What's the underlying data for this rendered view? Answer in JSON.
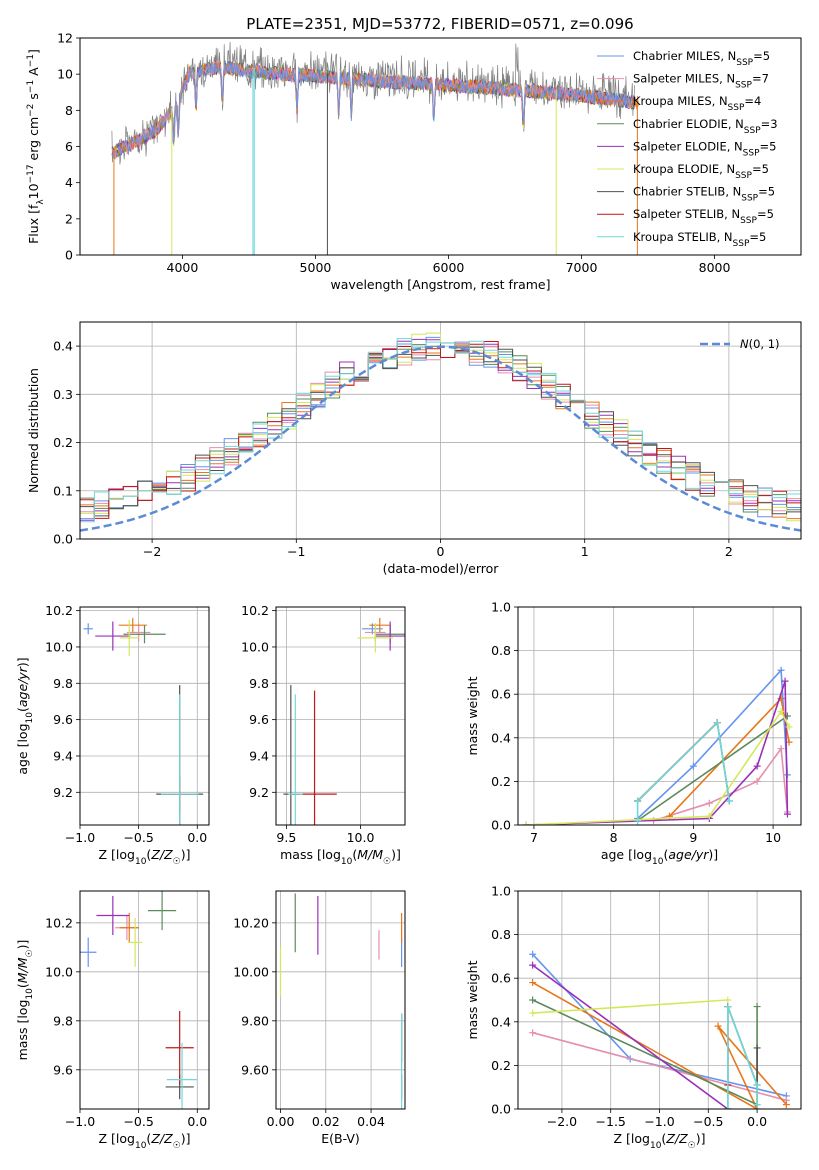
{
  "title": "PLATE=2351, MJD=53772, FIBERID=0571, z=0.096",
  "models": [
    {
      "label": "Chabrier MILES, N$_{SSP}$=5",
      "display": "Chabrier MILES, N",
      "sub": "SSP",
      "n": "=5",
      "color": "#6495ed"
    },
    {
      "label": "Salpeter MILES, N$_{SSP}$=7",
      "display": "Salpeter MILES, N",
      "sub": "SSP",
      "n": "=7",
      "color": "#e68fac"
    },
    {
      "label": "Kroupa MILES, N$_{SSP}$=4",
      "display": "Kroupa MILES, N",
      "sub": "SSP",
      "n": "=4",
      "color": "#e8761a"
    },
    {
      "label": "Chabrier ELODIE, N$_{SSP}$=3",
      "display": "Chabrier ELODIE, N",
      "sub": "SSP",
      "n": "=3",
      "color": "#5b8a5b"
    },
    {
      "label": "Salpeter ELODIE, N$_{SSP}$=5",
      "display": "Salpeter ELODIE, N",
      "sub": "SSP",
      "n": "=5",
      "color": "#9b30b8"
    },
    {
      "label": "Kroupa ELODIE, N$_{SSP}$=5",
      "display": "Kroupa ELODIE, N",
      "sub": "SSP",
      "n": "=5",
      "color": "#d4e85a"
    },
    {
      "label": "Chabrier STELIB, N$_{SSP}$=5",
      "display": "Chabrier STELIB, N",
      "sub": "SSP",
      "n": "=5",
      "color": "#505050"
    },
    {
      "label": "Salpeter STELIB, N$_{SSP}$=5",
      "display": "Salpeter STELIB, N",
      "sub": "SSP",
      "n": "=5",
      "color": "#c01818"
    },
    {
      "label": "Kroupa STELIB, N$_{SSP}$=5",
      "display": "Kroupa STELIB, N",
      "sub": "SSP",
      "n": "=5",
      "color": "#70d8d8"
    }
  ],
  "chart_data": [
    {
      "id": "spectrum",
      "type": "line",
      "xlabel": "wavelength [Angstrom, rest frame]",
      "ylabel": "Flux [f$_\\lambda$ 10$^{-17}$ erg cm$^{-2}$ s$^{-1}$ A$^{-1}$]",
      "xlim": [
        3230,
        8650
      ],
      "ylim": [
        0,
        12
      ],
      "xticks": [
        4000,
        5000,
        6000,
        7000,
        8000
      ],
      "yticks": [
        0,
        2,
        4,
        6,
        8,
        10,
        12
      ],
      "data_color": "#808080",
      "continuum": {
        "x": [
          3470,
          3600,
          3800,
          3950,
          4050,
          4300,
          4600,
          5000,
          5500,
          6000,
          6500,
          7000,
          7400
        ],
        "y": [
          5.8,
          6.2,
          7.0,
          8.4,
          10.3,
          10.6,
          10.3,
          10.1,
          9.8,
          9.6,
          9.3,
          9.0,
          8.6
        ]
      },
      "note": "observed spectrum with nine model fits"
    },
    {
      "id": "residuals",
      "type": "bar",
      "xlabel": "(data-model)/error",
      "ylabel": "Normed distribution",
      "xlim": [
        -2.5,
        2.5
      ],
      "ylim": [
        0,
        0.45
      ],
      "xticks": [
        -2,
        -1,
        0,
        1,
        2
      ],
      "yticks": [
        0.0,
        0.1,
        0.2,
        0.3,
        0.4
      ],
      "bin_width": 0.1,
      "reference": {
        "label": "N(0,1)",
        "mean": 0,
        "sigma": 1,
        "color": "#5b8bd6"
      }
    },
    {
      "id": "age_vs_Z",
      "type": "scatter",
      "xlabel": "Z [log10(Z/Z☉)]",
      "ylabel": "age [log10(age/yr)]",
      "xlim": [
        -1.0,
        0.1
      ],
      "ylim": [
        9.02,
        10.22
      ],
      "xticks": [
        -1.0,
        -0.5,
        0.0
      ],
      "yticks": [
        9.2,
        9.4,
        9.6,
        9.8,
        10.0,
        10.2
      ],
      "points": [
        {
          "model": 0,
          "x": -0.93,
          "y": 10.1,
          "xerr": 0.04,
          "yerr": 0.03
        },
        {
          "model": 1,
          "x": -0.5,
          "y": 10.08,
          "xerr": 0.1,
          "yerr": 0.05
        },
        {
          "model": 2,
          "x": -0.55,
          "y": 10.12,
          "xerr": 0.12,
          "yerr": 0.04
        },
        {
          "model": 3,
          "x": -0.45,
          "y": 10.07,
          "xerr": 0.18,
          "yerr": 0.05
        },
        {
          "model": 4,
          "x": -0.72,
          "y": 10.06,
          "xerr": 0.15,
          "yerr": 0.08
        },
        {
          "model": 5,
          "x": -0.58,
          "y": 10.05,
          "xerr": 0.08,
          "yerr": 0.1
        },
        {
          "model": 6,
          "x": -0.15,
          "y": 9.19,
          "xerr": 0.2,
          "yerr": 0.6
        },
        {
          "model": 7,
          "x": -0.15,
          "y": 9.19,
          "xerr": 0.15,
          "yerr": 0.1
        },
        {
          "model": 8,
          "x": -0.15,
          "y": 9.19,
          "xerr": 0.16,
          "yerr": 0.55
        }
      ]
    },
    {
      "id": "age_vs_mass",
      "type": "scatter",
      "xlabel": "mass [log10(M/M☉)]",
      "ylabel": "",
      "xlim": [
        9.43,
        10.3
      ],
      "ylim": [
        9.02,
        10.22
      ],
      "xticks": [
        9.5,
        10.0
      ],
      "yticks": [
        9.2,
        9.4,
        9.6,
        9.8,
        10.0,
        10.2
      ],
      "points": [
        {
          "model": 0,
          "x": 10.08,
          "y": 10.1,
          "xerr": 0.07,
          "yerr": 0.03
        },
        {
          "model": 1,
          "x": 10.1,
          "y": 10.08,
          "xerr": 0.07,
          "yerr": 0.05
        },
        {
          "model": 2,
          "x": 10.13,
          "y": 10.12,
          "xerr": 0.07,
          "yerr": 0.04
        },
        {
          "model": 3,
          "x": 10.2,
          "y": 10.07,
          "xerr": 0.1,
          "yerr": 0.05
        },
        {
          "model": 4,
          "x": 10.2,
          "y": 10.06,
          "xerr": 0.1,
          "yerr": 0.08
        },
        {
          "model": 5,
          "x": 10.1,
          "y": 10.05,
          "xerr": 0.12,
          "yerr": 0.08
        },
        {
          "model": 6,
          "x": 9.53,
          "y": 9.19,
          "xerr": 0.05,
          "yerr": 0.6
        },
        {
          "model": 7,
          "x": 9.69,
          "y": 9.19,
          "xerr": 0.15,
          "yerr": 0.57
        },
        {
          "model": 8,
          "x": 9.56,
          "y": 9.19,
          "xerr": 0.05,
          "yerr": 0.55
        }
      ]
    },
    {
      "id": "mass_weight_vs_age",
      "type": "line",
      "xlabel": "age [log10(age/yr)]",
      "ylabel": "mass weight",
      "xlim": [
        6.8,
        10.35
      ],
      "ylim": [
        0,
        1.0
      ],
      "xticks": [
        7,
        8,
        9,
        10
      ],
      "yticks": [
        0.0,
        0.2,
        0.4,
        0.6,
        0.8,
        1.0
      ],
      "series": [
        {
          "model": 0,
          "x": [
            8.3,
            9.0,
            10.1,
            10.18
          ],
          "y": [
            0.03,
            0.27,
            0.71,
            0.23
          ]
        },
        {
          "model": 1,
          "x": [
            8.5,
            9.2,
            9.8,
            10.1,
            10.18
          ],
          "y": [
            0.02,
            0.1,
            0.2,
            0.35,
            0.06
          ]
        },
        {
          "model": 2,
          "x": [
            8.7,
            10.1,
            10.2
          ],
          "y": [
            0.04,
            0.58,
            0.38
          ]
        },
        {
          "model": 3,
          "x": [
            8.3,
            10.18
          ],
          "y": [
            0.02,
            0.5
          ]
        },
        {
          "model": 4,
          "x": [
            6.9,
            9.2,
            9.8,
            10.15,
            10.18
          ],
          "y": [
            0.0,
            0.03,
            0.27,
            0.66,
            0.05
          ]
        },
        {
          "model": 5,
          "x": [
            6.9,
            9.2,
            10.1,
            10.2
          ],
          "y": [
            0.0,
            0.04,
            0.52,
            0.45
          ]
        },
        {
          "model": 6,
          "x": [
            8.3,
            9.3,
            9.45
          ],
          "y": [
            0.11,
            0.47,
            0.11
          ]
        },
        {
          "model": 7,
          "x": [
            8.3,
            9.3
          ],
          "y": [
            0.11,
            0.47
          ]
        },
        {
          "model": 8,
          "x": [
            8.3,
            8.3,
            9.3,
            9.45
          ],
          "y": [
            0.02,
            0.11,
            0.47,
            0.11
          ]
        }
      ]
    },
    {
      "id": "mass_vs_Z",
      "type": "scatter",
      "xlabel": "Z [log10(Z/Z☉)]",
      "ylabel": "mass [log10(M/M☉)]",
      "xlim": [
        -1.0,
        0.1
      ],
      "ylim": [
        9.44,
        10.33
      ],
      "xticks": [
        -1.0,
        -0.5,
        0.0
      ],
      "yticks": [
        9.6,
        9.8,
        10.0,
        10.2
      ],
      "points": [
        {
          "model": 0,
          "x": -0.93,
          "y": 10.08,
          "xerr": 0.07,
          "yerr": 0.06
        },
        {
          "model": 1,
          "x": -0.6,
          "y": 10.18,
          "xerr": 0.1,
          "yerr": 0.05
        },
        {
          "model": 2,
          "x": -0.58,
          "y": 10.18,
          "xerr": 0.08,
          "yerr": 0.06
        },
        {
          "model": 3,
          "x": -0.3,
          "y": 10.25,
          "xerr": 0.12,
          "yerr": 0.08
        },
        {
          "model": 4,
          "x": -0.72,
          "y": 10.23,
          "xerr": 0.14,
          "yerr": 0.08
        },
        {
          "model": 5,
          "x": -0.53,
          "y": 10.12,
          "xerr": 0.06,
          "yerr": 0.1
        },
        {
          "model": 6,
          "x": -0.15,
          "y": 9.53,
          "xerr": 0.12,
          "yerr": 0.05
        },
        {
          "model": 7,
          "x": -0.15,
          "y": 9.69,
          "xerr": 0.12,
          "yerr": 0.15
        },
        {
          "model": 8,
          "x": -0.13,
          "y": 9.56,
          "xerr": 0.13,
          "yerr": 0.15
        }
      ]
    },
    {
      "id": "mass_vs_EBV",
      "type": "scatter",
      "xlabel": "E(B-V)",
      "ylabel": "",
      "xlim": [
        -0.002,
        0.055
      ],
      "ylim": [
        9.44,
        10.33
      ],
      "xticks": [
        0.0,
        0.02,
        0.04
      ],
      "yticks": [
        9.6,
        9.8,
        10.0,
        10.2
      ],
      "points": [
        {
          "model": 0,
          "x": 0.0535,
          "y": 10.08,
          "xerr": 0,
          "yerr": 0.06
        },
        {
          "model": 1,
          "x": 0.0435,
          "y": 10.11,
          "xerr": 0,
          "yerr": 0.06
        },
        {
          "model": 2,
          "x": 0.0535,
          "y": 10.18,
          "xerr": 0,
          "yerr": 0.06
        },
        {
          "model": 3,
          "x": 0.0065,
          "y": 10.2,
          "xerr": 0,
          "yerr": 0.12
        },
        {
          "model": 4,
          "x": 0.0165,
          "y": 10.19,
          "xerr": 0,
          "yerr": 0.12
        },
        {
          "model": 5,
          "x": 0.0,
          "y": 10.0,
          "xerr": 0,
          "yerr": 0.1
        },
        {
          "model": 6,
          "x": 0.0535,
          "y": 9.53,
          "xerr": 0,
          "yerr": 0.05
        },
        {
          "model": 7,
          "x": 0.0535,
          "y": 9.73,
          "xerr": 0,
          "yerr": 0.1
        },
        {
          "model": 8,
          "x": 0.0535,
          "y": 9.63,
          "xerr": 0,
          "yerr": 0.2
        }
      ]
    },
    {
      "id": "mass_weight_vs_Z",
      "type": "line",
      "xlabel": "Z [log10(Z/Z☉)]",
      "ylabel": "mass weight",
      "xlim": [
        -2.45,
        0.45
      ],
      "ylim": [
        0,
        1.0
      ],
      "xticks": [
        -2.0,
        -1.5,
        -1.0,
        -0.5,
        0.0
      ],
      "yticks": [
        0.0,
        0.2,
        0.4,
        0.6,
        0.8,
        1.0
      ],
      "series": [
        {
          "model": 0,
          "x": [
            -2.3,
            -1.3,
            0.3
          ],
          "y": [
            0.71,
            0.23,
            0.06
          ]
        },
        {
          "model": 1,
          "x": [
            -2.3,
            0.3
          ],
          "y": [
            0.35,
            0.04
          ]
        },
        {
          "model": 2,
          "x": [
            -2.3,
            0.0,
            -0.4,
            0.3
          ],
          "y": [
            0.58,
            0.0,
            0.38,
            0.02
          ]
        },
        {
          "model": 3,
          "x": [
            -2.3,
            0.0,
            0.0
          ],
          "y": [
            0.5,
            0.02,
            0.47
          ]
        },
        {
          "model": 4,
          "x": [
            -2.3,
            -0.3
          ],
          "y": [
            0.66,
            0.0
          ]
        },
        {
          "model": 5,
          "x": [
            -2.3,
            -0.3
          ],
          "y": [
            0.44,
            0.5
          ]
        },
        {
          "model": 6,
          "x": [
            -0.3,
            -0.3,
            0.0,
            0.0
          ],
          "y": [
            0.0,
            0.47,
            0.11,
            0.28
          ]
        },
        {
          "model": 7,
          "x": [
            -0.3,
            -0.3
          ],
          "y": [
            0.11,
            0.47
          ]
        },
        {
          "model": 8,
          "x": [
            -0.3,
            -0.3,
            0.0,
            0.0
          ],
          "y": [
            0.0,
            0.47,
            0.11,
            0.02
          ]
        }
      ]
    }
  ]
}
